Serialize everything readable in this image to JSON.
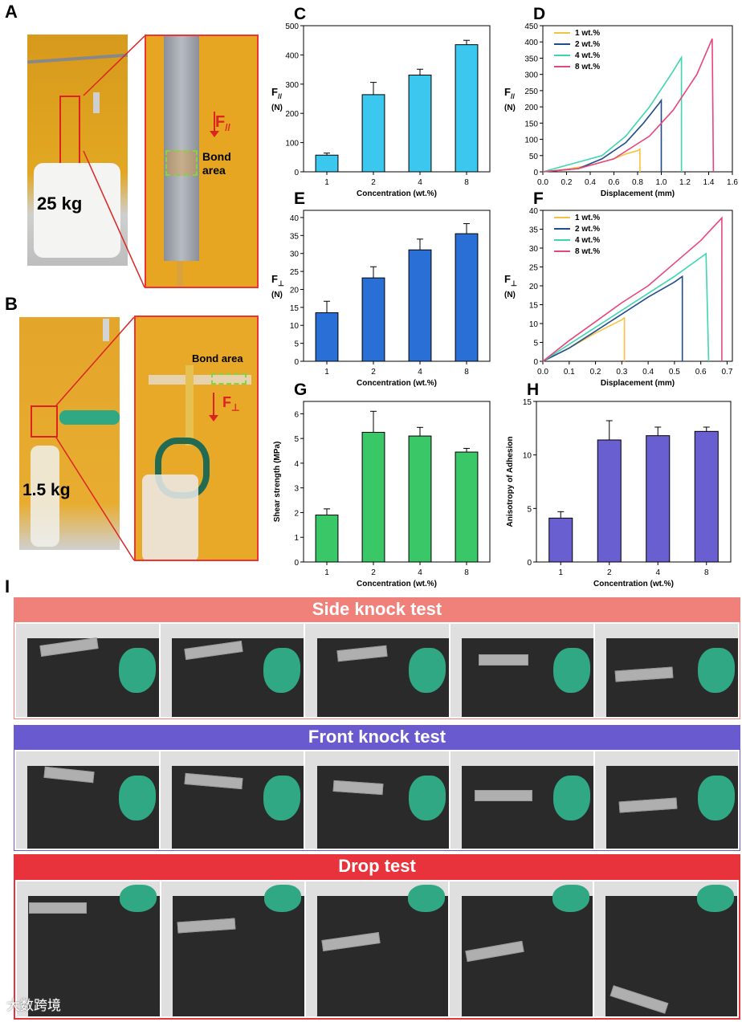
{
  "panels": {
    "A": {
      "letter": "A",
      "weight_label": "25 kg",
      "force_label": "F",
      "force_sub": "//",
      "bond_label_1": "Bond",
      "bond_label_2": "area"
    },
    "B": {
      "letter": "B",
      "weight_label": "1.5 kg",
      "force_label": "F",
      "force_sub": "⊥",
      "bond_label": "Bond area"
    },
    "I": {
      "letter": "I"
    }
  },
  "tests": [
    {
      "title": "Side knock test",
      "color": "#f0807a",
      "frames": 5
    },
    {
      "title": "Front knock test",
      "color": "#6a5ad0",
      "frames": 5
    },
    {
      "title": "Drop test",
      "color": "#e8333c",
      "frames": 5
    }
  ],
  "watermark": "大数跨境",
  "colors": {
    "C": "#3cc8ee",
    "E": "#2a6fd6",
    "G": "#3ac768",
    "H": "#6a5fd0",
    "1wt": "#f5c244",
    "2wt": "#1f4c8f",
    "4wt": "#3fd5b0",
    "8wt": "#e8467a"
  },
  "chart_data": [
    {
      "id": "C",
      "letter": "C",
      "type": "bar",
      "categories": [
        "1",
        "2",
        "4",
        "8"
      ],
      "values": [
        57,
        264,
        331,
        435
      ],
      "errors": [
        7,
        42,
        20,
        15
      ],
      "xlabel": "Concentration (wt.%)",
      "ylabel": "F",
      "ylabel_sub": "//",
      "ylabel_unit": "(N)",
      "ylim": [
        0,
        500
      ],
      "yticks": [
        0,
        100,
        200,
        300,
        400,
        500
      ]
    },
    {
      "id": "D",
      "letter": "D",
      "type": "line",
      "xlabel": "Displacement (mm)",
      "ylabel": "F",
      "ylabel_sub": "//",
      "ylabel_unit": "(N)",
      "xlim": [
        0,
        1.6
      ],
      "ylim": [
        0,
        450
      ],
      "xticks": [
        "0.0",
        "0.2",
        "0.4",
        "0.6",
        "0.8",
        "1.0",
        "1.2",
        "1.4",
        "1.6"
      ],
      "yticks": [
        0,
        50,
        100,
        150,
        200,
        250,
        300,
        350,
        400,
        450
      ],
      "series": [
        {
          "name": "1 wt.%",
          "x": [
            0,
            0.2,
            0.4,
            0.6,
            0.7,
            0.8,
            0.82,
            0.82
          ],
          "y": [
            0,
            8,
            20,
            40,
            55,
            65,
            70,
            0
          ]
        },
        {
          "name": "2 wt.%",
          "x": [
            0,
            0.3,
            0.5,
            0.7,
            0.85,
            0.98,
            1.0,
            1.0
          ],
          "y": [
            0,
            10,
            40,
            90,
            150,
            210,
            220,
            0
          ]
        },
        {
          "name": "4 wt.%",
          "x": [
            0,
            0.3,
            0.5,
            0.7,
            0.9,
            1.1,
            1.17,
            1.17
          ],
          "y": [
            0,
            30,
            50,
            110,
            200,
            310,
            352,
            0
          ]
        },
        {
          "name": "8 wt.%",
          "x": [
            0,
            0.3,
            0.6,
            0.9,
            1.1,
            1.3,
            1.43,
            1.44
          ],
          "y": [
            0,
            10,
            40,
            110,
            190,
            300,
            410,
            0
          ]
        }
      ]
    },
    {
      "id": "E",
      "letter": "E",
      "type": "bar",
      "categories": [
        "1",
        "2",
        "4",
        "8"
      ],
      "values": [
        13.5,
        23.2,
        31.0,
        35.5
      ],
      "errors": [
        3.2,
        3.1,
        3.0,
        2.8
      ],
      "xlabel": "Concentration (wt.%)",
      "ylabel": "F",
      "ylabel_sub": "⊥",
      "ylabel_unit": "(N)",
      "ylim": [
        0,
        42
      ],
      "yticks": [
        0,
        5,
        10,
        15,
        20,
        25,
        30,
        35,
        40
      ]
    },
    {
      "id": "F",
      "letter": "F",
      "type": "line",
      "xlabel": "Displacement (mm)",
      "ylabel": "F",
      "ylabel_sub": "⊥",
      "ylabel_unit": "(N)",
      "xlim": [
        0,
        0.72
      ],
      "ylim": [
        0,
        40
      ],
      "xticks": [
        "0.0",
        "0.1",
        "0.2",
        "0.3",
        "0.4",
        "0.5",
        "0.6",
        "0.7"
      ],
      "yticks": [
        0,
        5,
        10,
        15,
        20,
        25,
        30,
        35,
        40
      ],
      "series": [
        {
          "name": "1 wt.%",
          "x": [
            0,
            0.1,
            0.2,
            0.3,
            0.31,
            0.31
          ],
          "y": [
            0,
            3.5,
            7.5,
            11.0,
            11.5,
            0
          ]
        },
        {
          "name": "2 wt.%",
          "x": [
            0,
            0.1,
            0.2,
            0.3,
            0.4,
            0.5,
            0.53,
            0.53
          ],
          "y": [
            0,
            3.5,
            8,
            12.5,
            17,
            21,
            22.5,
            0
          ]
        },
        {
          "name": "4 wt.%",
          "x": [
            0,
            0.1,
            0.2,
            0.3,
            0.4,
            0.5,
            0.62,
            0.63
          ],
          "y": [
            0,
            4.5,
            9,
            13.5,
            18,
            22.5,
            28.5,
            0
          ]
        },
        {
          "name": "8 wt.%",
          "x": [
            0,
            0.1,
            0.2,
            0.3,
            0.4,
            0.5,
            0.6,
            0.68,
            0.68
          ],
          "y": [
            0,
            5.5,
            10.5,
            15.5,
            20,
            26,
            32,
            38,
            0
          ]
        }
      ]
    },
    {
      "id": "G",
      "letter": "G",
      "type": "bar",
      "categories": [
        "1",
        "2",
        "4",
        "8"
      ],
      "values": [
        1.9,
        5.25,
        5.1,
        4.45
      ],
      "errors": [
        0.25,
        0.85,
        0.35,
        0.15
      ],
      "xlabel": "Concentration (wt.%)",
      "ylabel": "Shear strength (MPa)",
      "ylim": [
        0,
        6.5
      ],
      "yticks": [
        0,
        1,
        2,
        3,
        4,
        5,
        6
      ]
    },
    {
      "id": "H",
      "letter": "H",
      "type": "bar",
      "categories": [
        "1",
        "2",
        "4",
        "8"
      ],
      "values": [
        4.1,
        11.4,
        11.8,
        12.2
      ],
      "errors": [
        0.6,
        1.8,
        0.8,
        0.4
      ],
      "xlabel": "Concentration (wt.%)",
      "ylabel": "Anisotropy of Adhesion",
      "ylim": [
        0,
        15
      ],
      "yticks": [
        0,
        5,
        10,
        15
      ]
    }
  ]
}
